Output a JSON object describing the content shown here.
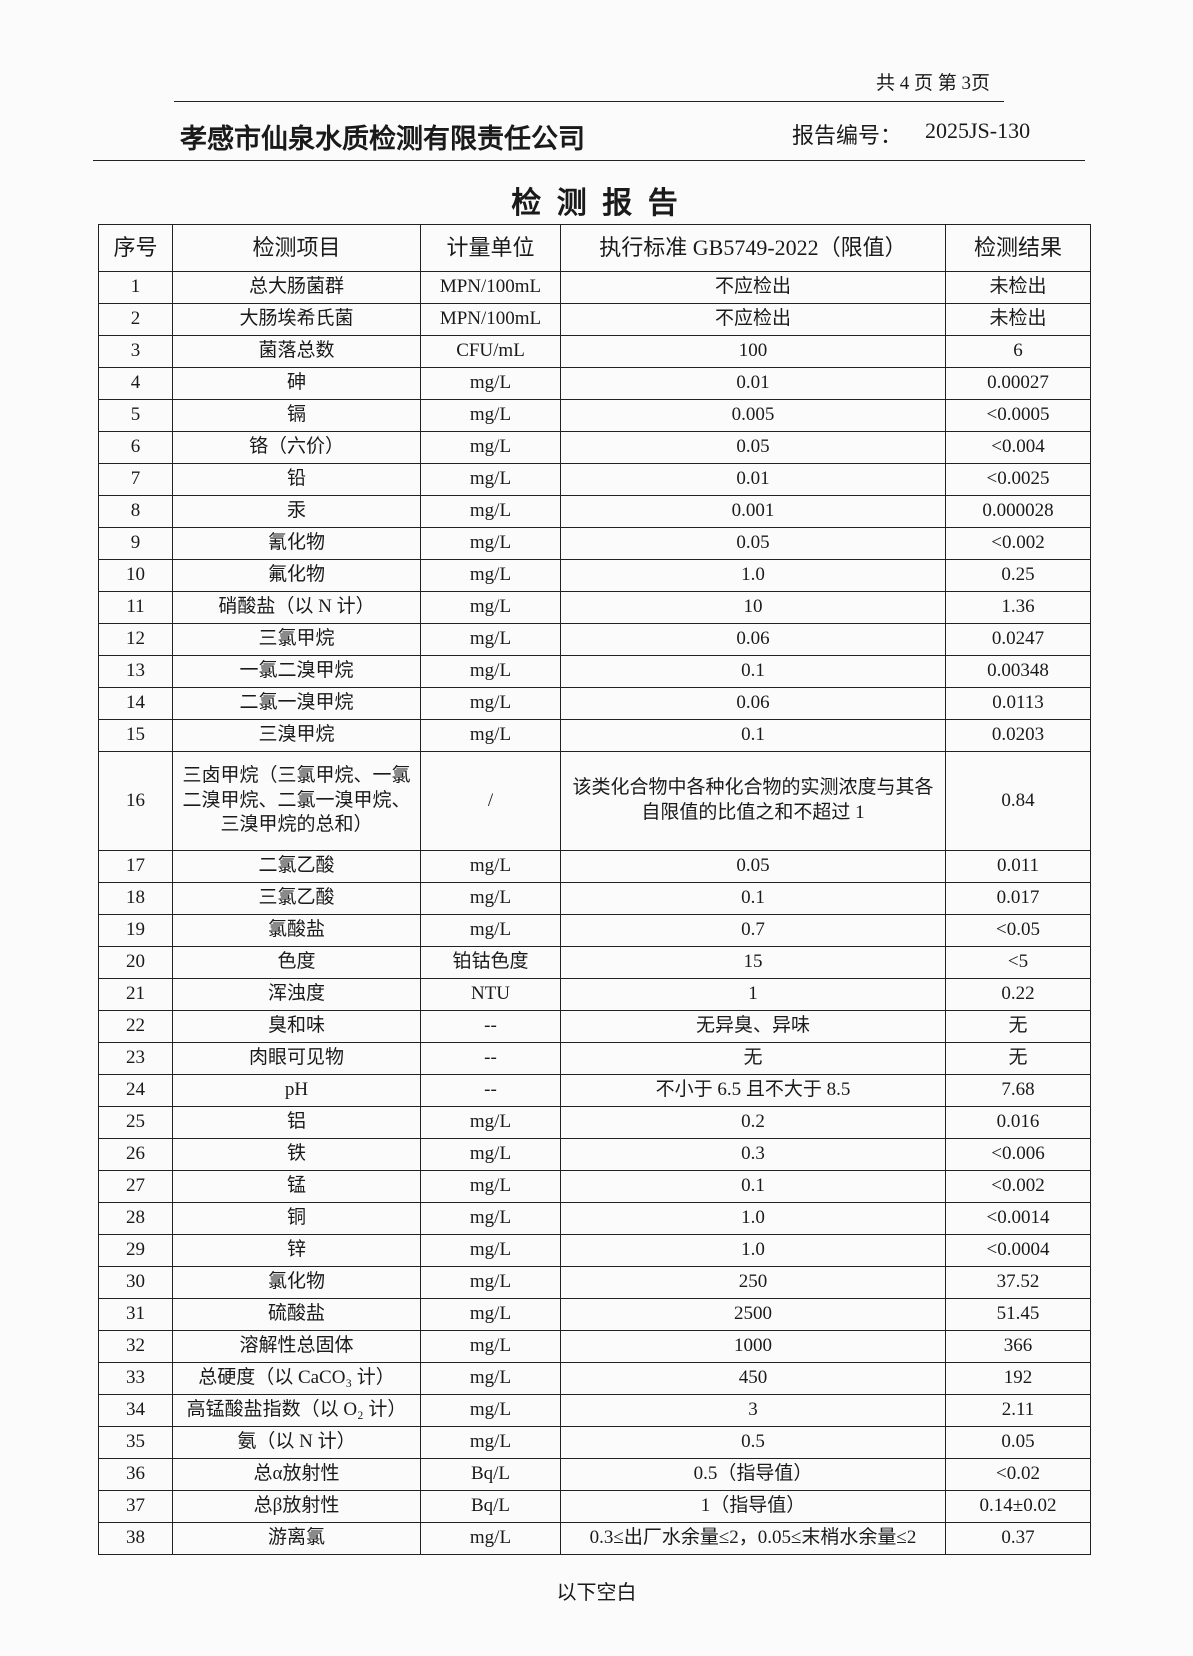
{
  "header": {
    "page_info": "共 4 页  第 3页",
    "company": "孝感市仙泉水质检测有限责任公司",
    "report_no_label": "报告编号：",
    "report_no": "2025JS-130"
  },
  "title": "检 测 报 告",
  "table": {
    "columns": [
      "序号",
      "检测项目",
      "计量单位",
      "执行标准 GB5749-2022（限值）",
      "检测结果"
    ],
    "rows": [
      [
        "1",
        "总大肠菌群",
        "MPN/100mL",
        "不应检出",
        "未检出"
      ],
      [
        "2",
        "大肠埃希氏菌",
        "MPN/100mL",
        "不应检出",
        "未检出"
      ],
      [
        "3",
        "菌落总数",
        "CFU/mL",
        "100",
        "6"
      ],
      [
        "4",
        "砷",
        "mg/L",
        "0.01",
        "0.00027"
      ],
      [
        "5",
        "镉",
        "mg/L",
        "0.005",
        "<0.0005"
      ],
      [
        "6",
        "铬（六价）",
        "mg/L",
        "0.05",
        "<0.004"
      ],
      [
        "7",
        "铅",
        "mg/L",
        "0.01",
        "<0.0025"
      ],
      [
        "8",
        "汞",
        "mg/L",
        "0.001",
        "0.000028"
      ],
      [
        "9",
        "氰化物",
        "mg/L",
        "0.05",
        "<0.002"
      ],
      [
        "10",
        "氟化物",
        "mg/L",
        "1.0",
        "0.25"
      ],
      [
        "11",
        "硝酸盐（以 N 计）",
        "mg/L",
        "10",
        "1.36"
      ],
      [
        "12",
        "三氯甲烷",
        "mg/L",
        "0.06",
        "0.0247"
      ],
      [
        "13",
        "一氯二溴甲烷",
        "mg/L",
        "0.1",
        "0.00348"
      ],
      [
        "14",
        "二氯一溴甲烷",
        "mg/L",
        "0.06",
        "0.0113"
      ],
      [
        "15",
        "三溴甲烷",
        "mg/L",
        "0.1",
        "0.0203"
      ],
      [
        "16",
        "三卤甲烷（三氯甲烷、一氯二溴甲烷、二氯一溴甲烷、三溴甲烷的总和）",
        "/",
        "该类化合物中各种化合物的实测浓度与其各自限值的比值之和不超过 1",
        "0.84"
      ],
      [
        "17",
        "二氯乙酸",
        "mg/L",
        "0.05",
        "0.011"
      ],
      [
        "18",
        "三氯乙酸",
        "mg/L",
        "0.1",
        "0.017"
      ],
      [
        "19",
        "氯酸盐",
        "mg/L",
        "0.7",
        "<0.05"
      ],
      [
        "20",
        "色度",
        "铂钴色度",
        "15",
        "<5"
      ],
      [
        "21",
        "浑浊度",
        "NTU",
        "1",
        "0.22"
      ],
      [
        "22",
        "臭和味",
        "--",
        "无异臭、异味",
        "无"
      ],
      [
        "23",
        "肉眼可见物",
        "--",
        "无",
        "无"
      ],
      [
        "24",
        "pH",
        "--",
        "不小于 6.5 且不大于 8.5",
        "7.68"
      ],
      [
        "25",
        "铝",
        "mg/L",
        "0.2",
        "0.016"
      ],
      [
        "26",
        "铁",
        "mg/L",
        "0.3",
        "<0.006"
      ],
      [
        "27",
        "锰",
        "mg/L",
        "0.1",
        "<0.002"
      ],
      [
        "28",
        "铜",
        "mg/L",
        "1.0",
        "<0.0014"
      ],
      [
        "29",
        "锌",
        "mg/L",
        "1.0",
        "<0.0004"
      ],
      [
        "30",
        "氯化物",
        "mg/L",
        "250",
        "37.52"
      ],
      [
        "31",
        "硫酸盐",
        "mg/L",
        "2500",
        "51.45"
      ],
      [
        "32",
        "溶解性总固体",
        "mg/L",
        "1000",
        "366"
      ],
      [
        "33",
        "总硬度（以 CaCO₃ 计）",
        "mg/L",
        "450",
        "192"
      ],
      [
        "34",
        "高锰酸盐指数（以 O₂ 计）",
        "mg/L",
        "3",
        "2.11"
      ],
      [
        "35",
        "氨（以 N 计）",
        "mg/L",
        "0.5",
        "0.05"
      ],
      [
        "36",
        "总α放射性",
        "Bq/L",
        "0.5（指导值）",
        "<0.02"
      ],
      [
        "37",
        "总β放射性",
        "Bq/L",
        "1（指导值）",
        "0.14±0.02"
      ],
      [
        "38",
        "游离氯",
        "mg/L",
        "0.3≤出厂水余量≤2，0.05≤末梢水余量≤2",
        "0.37"
      ]
    ]
  },
  "footer": "以下空白"
}
